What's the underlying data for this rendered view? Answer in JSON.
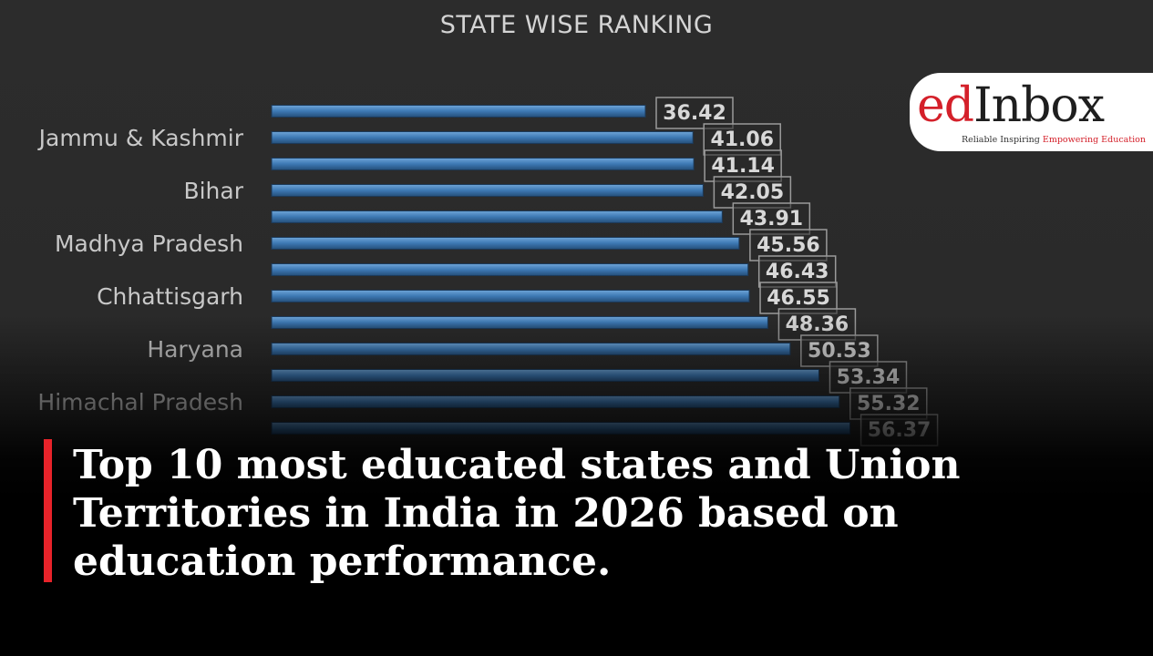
{
  "chart_data": {
    "type": "bar",
    "orientation": "horizontal",
    "title": "STATE WISE RANKING",
    "labels_shown": [
      "Jammu & Kashmir",
      "Bihar",
      "Madhya Pradesh",
      "Chhattisgarh",
      "Haryana",
      "Himachal Pradesh"
    ],
    "values": [
      36.42,
      41.06,
      41.14,
      42.05,
      43.91,
      45.56,
      46.43,
      46.55,
      48.36,
      50.53,
      53.34,
      55.32,
      56.37
    ],
    "grid": false,
    "legend": "none",
    "colors": {
      "bar": "#3d78b3",
      "bar_highlight": "#6ea5d8",
      "label": "#c8c8c8",
      "value": "#d8d8d8"
    }
  },
  "logo": {
    "ed": "ed",
    "inbox": "Inbox",
    "tagline_plain": "Reliable Inspiring ",
    "tagline_accent": "Empowering Education"
  },
  "headline": "Top 10 most educated states and Union Territories in India in 2026 based on education performance.",
  "colors": {
    "accent": "#e8232a",
    "background": "#2b2b2b",
    "headline": "#ffffff"
  }
}
